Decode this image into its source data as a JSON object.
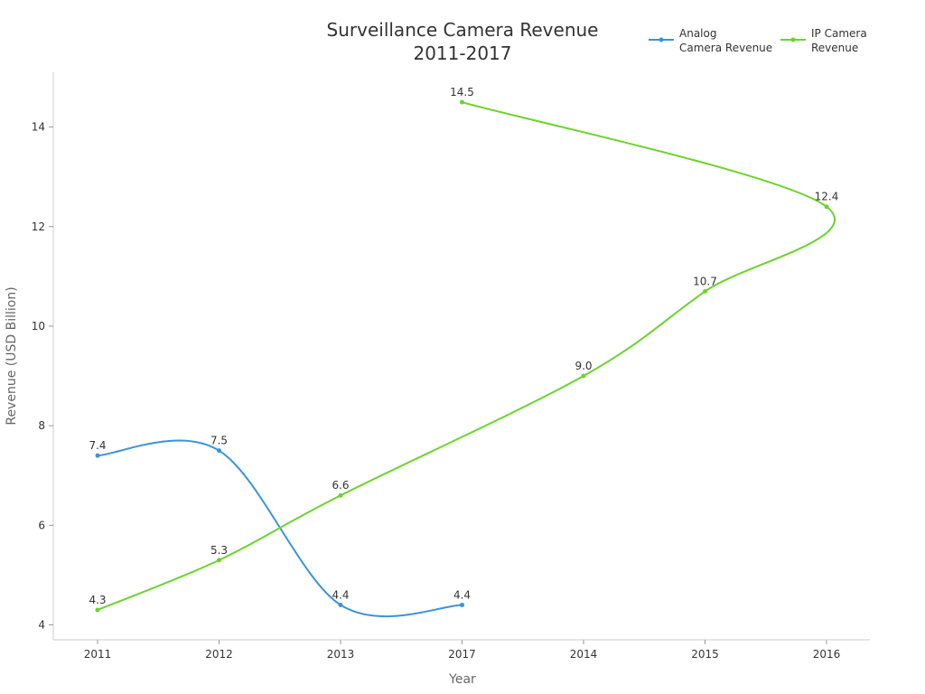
{
  "chart_data": {
    "type": "line",
    "title": [
      "Surveillance Camera Revenue",
      "2011-2017"
    ],
    "xlabel": "Year",
    "ylabel": "Revenue (USD Billion)",
    "categories": [
      "2011",
      "2012",
      "2013",
      "2017",
      "2014",
      "2015",
      "2016"
    ],
    "yticks": [
      4,
      6,
      8,
      10,
      12,
      14
    ],
    "ylim": [
      3.7,
      15.1
    ],
    "grid": false,
    "legend_position": "top-right",
    "series": [
      {
        "name": [
          "Analog",
          "Camera Revenue"
        ],
        "color": "#3a93dd",
        "points": [
          {
            "x": "2011",
            "y": 7.4,
            "label": "7.4"
          },
          {
            "x": "2012",
            "y": 7.5,
            "label": "7.5"
          },
          {
            "x": "2013",
            "y": 4.4,
            "label": "4.4"
          },
          {
            "x": "2017",
            "y": 4.4,
            "label": "4.4"
          }
        ]
      },
      {
        "name": [
          "IP Camera",
          "Revenue"
        ],
        "color": "#6cd32e",
        "points": [
          {
            "x": "2011",
            "y": 4.3,
            "label": "4.3"
          },
          {
            "x": "2012",
            "y": 5.3,
            "label": "5.3"
          },
          {
            "x": "2013",
            "y": 6.6,
            "label": "6.6"
          },
          {
            "x": "2014",
            "y": 9.0,
            "label": "9.0"
          },
          {
            "x": "2015",
            "y": 10.7,
            "label": "10.7"
          },
          {
            "x": "2016",
            "y": 12.4,
            "label": "12.4"
          },
          {
            "x": "2017",
            "y": 14.5,
            "label": "14.5"
          }
        ]
      }
    ]
  }
}
